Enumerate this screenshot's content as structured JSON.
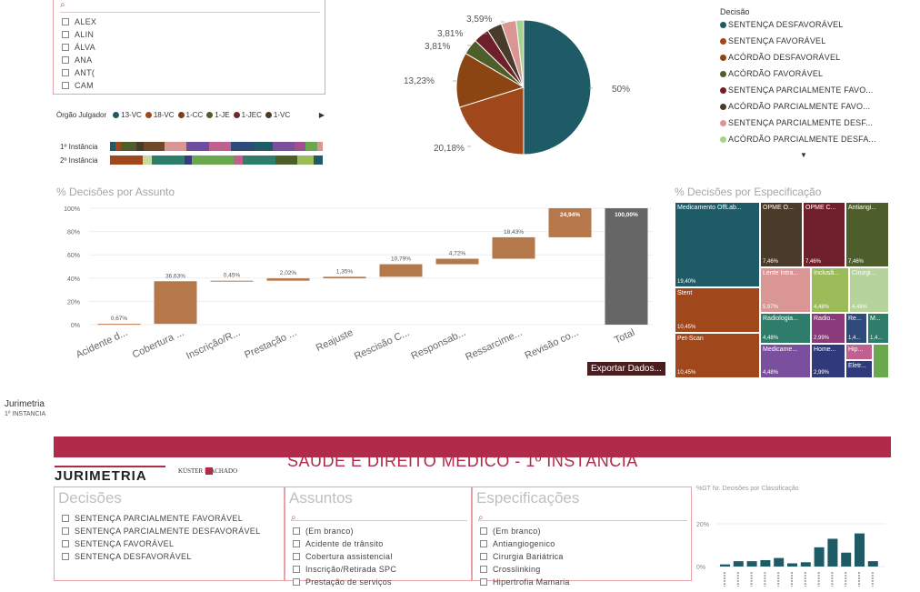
{
  "top_slicer": {
    "items": [
      "ALEX",
      "ALIN",
      "ÁLVA",
      "ANA",
      "ANT(",
      "CAM"
    ]
  },
  "orgao": {
    "label": "Órgão Julgador",
    "legend": [
      {
        "name": "13-VC",
        "color": "#1f5b66"
      },
      {
        "name": "18-VC",
        "color": "#a0481b"
      },
      {
        "name": "1-CC",
        "color": "#7a3f1a"
      },
      {
        "name": "1-JE",
        "color": "#4d5e2a"
      },
      {
        "name": "1-JEC",
        "color": "#6e2a2a"
      },
      {
        "name": "1-VC",
        "color": "#4a3a2a"
      }
    ],
    "rows": [
      {
        "label": "1º Instância",
        "segments": [
          {
            "c": "#1f5b66",
            "w": 6
          },
          {
            "c": "#a0481b",
            "w": 6
          },
          {
            "c": "#4d5e2a",
            "w": 16
          },
          {
            "c": "#4a3a2a",
            "w": 8
          },
          {
            "c": "#6e4a2a",
            "w": 22
          },
          {
            "c": "#d99694",
            "w": 24
          },
          {
            "c": "#6b4f9e",
            "w": 24
          },
          {
            "c": "#c06090",
            "w": 24
          },
          {
            "c": "#2e4a7a",
            "w": 24
          },
          {
            "c": "#1f5b66",
            "w": 20
          },
          {
            "c": "#7a4f9e",
            "w": 24
          },
          {
            "c": "#9e5090",
            "w": 12
          },
          {
            "c": "#6aa84f",
            "w": 12
          },
          {
            "c": "#d99694",
            "w": 6
          }
        ]
      },
      {
        "label": "2º Instância",
        "segments": [
          {
            "c": "#a0481b",
            "w": 36
          },
          {
            "c": "#c5d9a0",
            "w": 10
          },
          {
            "c": "#2e7d6a",
            "w": 36
          },
          {
            "c": "#3a3a7a",
            "w": 8
          },
          {
            "c": "#6aa84f",
            "w": 46
          },
          {
            "c": "#c06090",
            "w": 10
          },
          {
            "c": "#2e7d6a",
            "w": 36
          },
          {
            "c": "#4d5e2a",
            "w": 24
          },
          {
            "c": "#9bbb59",
            "w": 18
          },
          {
            "c": "#1f5b66",
            "w": 10
          }
        ]
      }
    ]
  },
  "pie": {
    "slices": [
      {
        "name": "SENTENÇA DESFAVORÁVEL",
        "value": 50,
        "color": "#1f5b66"
      },
      {
        "name": "SENTENÇA FAVORÁVEL",
        "value": 20.18,
        "color": "#a0481b"
      },
      {
        "name": "ACÓRDÃO DESFAVORÁVEL",
        "value": 13.23,
        "color": "#8b4513"
      },
      {
        "name": "ACÓRDÃO FAVORÁVEL",
        "value": 3.81,
        "color": "#4d5e2a"
      },
      {
        "name": "SENTENÇA PARCIALMENTE FAVO...",
        "value": 3.81,
        "color": "#6e1f2a"
      },
      {
        "name": "ACÓRDÃO PARCIALMENTE FAVO...",
        "value": 3.59,
        "color": "#4a3a2a"
      },
      {
        "name": "SENTENÇA PARCIALMENTE DESF...",
        "value": 3.59,
        "color": "#d99694"
      },
      {
        "name": "ACÓRDÃO PARCIALMENTE DESFA...",
        "value": 1.79,
        "color": "#a9d18e"
      }
    ],
    "labels": [
      "50%",
      "20,18%",
      "13,23%",
      "3,81%",
      "3,81%",
      "3,59%"
    ],
    "legend_title": "Decisão"
  },
  "chart_data": {
    "type": "bar",
    "title": "% Decisões por Assunto",
    "categories": [
      "Acidente d...",
      "Cobertura ...",
      "Inscrição/R...",
      "Prestação ...",
      "Reajuste",
      "Rescisão C...",
      "Responsab...",
      "Ressarcime...",
      "Revisão co...",
      "Total"
    ],
    "values": [
      0.67,
      36.63,
      0.45,
      2.02,
      1.35,
      10.79,
      4.72,
      18.43,
      24.94,
      100.0
    ],
    "value_labels": [
      "0,67%",
      "36,63%",
      "0,45%",
      "2,02%",
      "1,35%",
      "10,79%",
      "4,72%",
      "18,43%",
      "24,94%",
      "100,00%"
    ],
    "yticks": [
      "100%",
      "80%",
      "60%",
      "40%",
      "20%",
      "0%"
    ],
    "ylim": [
      0,
      100
    ],
    "waterfall": true
  },
  "treemap": {
    "title": "% Decisões por Especificação",
    "cells": [
      {
        "label": "Medicamento OffLab...",
        "value": "19,40%",
        "color": "#1f5b66"
      },
      {
        "label": "OPME O...",
        "value": "7,46%",
        "color": "#4a3a2a"
      },
      {
        "label": "OPME C...",
        "value": "7,46%",
        "color": "#6e1f2a"
      },
      {
        "label": "Antiangi...",
        "value": "7,46%",
        "color": "#4d5e2a"
      },
      {
        "label": "Stent",
        "value": "10,45%",
        "color": "#a0481b"
      },
      {
        "label": "Lente Intra...",
        "value": "5,97%",
        "color": "#d99694"
      },
      {
        "label": "Inclusã...",
        "value": "4,48%",
        "color": "#9bbb59"
      },
      {
        "label": "Cirurgi...",
        "value": "4,48%",
        "color": "#b5d39a"
      },
      {
        "label": "Pet-Scan",
        "value": "10,45%",
        "color": "#a0481b"
      },
      {
        "label": "Radiologia...",
        "value": "4,48%",
        "color": "#2e7d6a"
      },
      {
        "label": "Radio...",
        "value": "2,99%",
        "color": "#8a3a7a"
      },
      {
        "label": "Re...",
        "value": "1,4...",
        "color": "#2e4a7a"
      },
      {
        "label": "M...",
        "value": "1,4...",
        "color": "#2e7d6a"
      },
      {
        "label": "Medicame...",
        "value": "4,48%",
        "color": "#7a4f9e"
      },
      {
        "label": "Home...",
        "value": "2,99%",
        "color": "#2e3a7a"
      },
      {
        "label": "Hip...",
        "value": "",
        "color": "#c06090"
      },
      {
        "label": "Eletr...",
        "value": "",
        "color": "#2e3a7a"
      }
    ]
  },
  "export_button": "Exportar Dados...",
  "footer": {
    "title": "Jurimetria",
    "subtitle": "1º INSTANCIA"
  },
  "report": {
    "title": "SAÚDE E DIREITO MÉDICO - 1º INSTÂNCIA",
    "logo": "JURIMETRIA",
    "partner": "KÜSTER  MACHADO"
  },
  "decisoes": {
    "title": "Decisões",
    "items": [
      "SENTENÇA PARCIALMENTE FAVORÁVEL",
      "SENTENÇA PARCIALMENTE DESFAVORÁVEL",
      "SENTENÇA FAVORÁVEL",
      "SENTENÇA DESFAVORÁVEL"
    ]
  },
  "assuntos": {
    "title": "Assuntos",
    "items": [
      "(Em branco)",
      "Acidente de trânsito",
      "Cobertura assistencial",
      "Inscrição/Retirada SPC",
      "Prestação de serviços"
    ]
  },
  "especificacoes": {
    "title": "Especificações",
    "items": [
      "(Em branco)",
      "Antiangiogenico",
      "Cirurgia Bariátrica",
      "Crosslinking",
      "Hipertrofia Mamaria"
    ]
  },
  "mini_chart": {
    "title": "%GT Nr. Decisões por Classificação",
    "yticks": [
      "20%",
      "0%"
    ],
    "values": [
      1,
      2.5,
      2.5,
      3,
      4,
      1.5,
      2,
      9,
      13,
      6.5,
      15.5,
      2.5
    ]
  }
}
